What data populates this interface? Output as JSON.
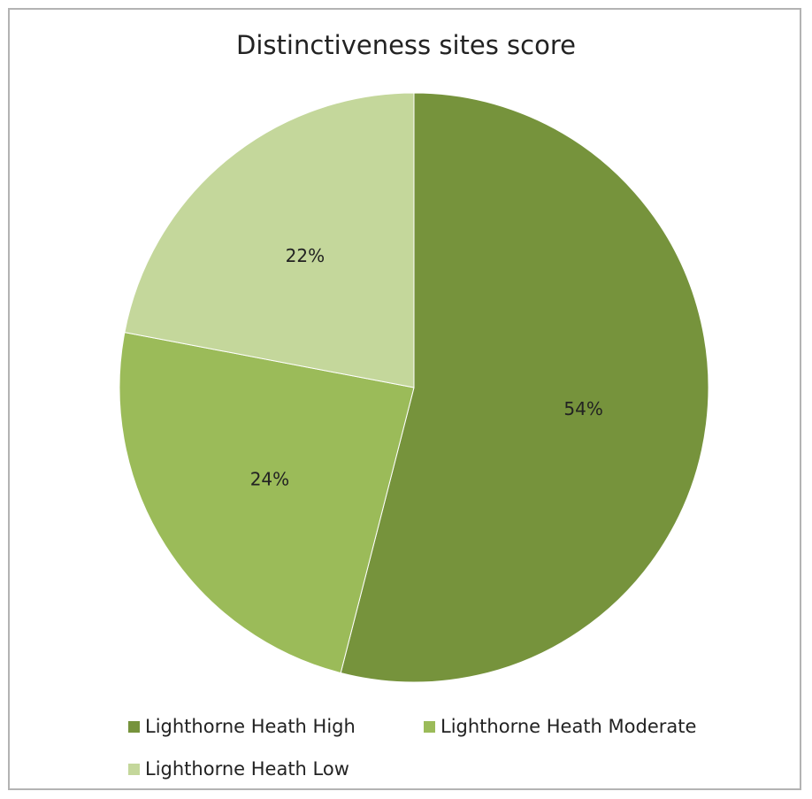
{
  "chart_data": {
    "type": "pie",
    "title": "Distinctiveness sites score",
    "categories": [
      "Lighthorne Heath High",
      "Lighthorne Heath Moderate",
      "Lighthorne Heath Low"
    ],
    "values": [
      54,
      24,
      22
    ],
    "data_labels": [
      "54%",
      "24%",
      "22%"
    ],
    "colors": [
      "#76933c",
      "#9bbb59",
      "#c4d79b"
    ],
    "start_angle": "12 o'clock",
    "direction": "clockwise",
    "legend_position": "bottom"
  }
}
